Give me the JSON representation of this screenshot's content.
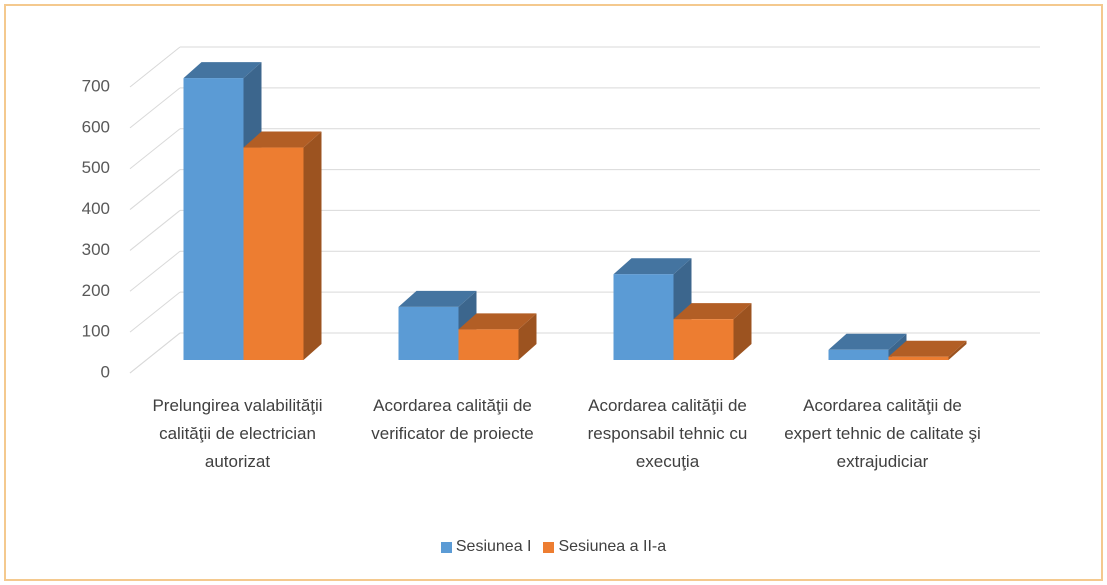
{
  "chart_data": {
    "type": "bar3d",
    "categories": [
      "Prelungirea valabilităţii calităţii de electrician autorizat",
      "Acordarea calităţii de verificator de proiecte",
      "Acordarea calităţii de responsabil tehnic cu execuţia",
      "Acordarea calităţii de expert tehnic de calitate şi extrajudiciar"
    ],
    "series": [
      {
        "name": "Sesiunea I",
        "color": "#5b9bd5",
        "values": [
          690,
          130,
          210,
          25
        ]
      },
      {
        "name": "Sesiunea a II-a",
        "color": "#ed7d31",
        "values": [
          520,
          75,
          100,
          8
        ]
      }
    ],
    "ylim": [
      0,
      700
    ],
    "yticks": [
      0,
      100,
      200,
      300,
      400,
      500,
      600,
      700
    ],
    "grid": true,
    "legend": "bottom"
  }
}
